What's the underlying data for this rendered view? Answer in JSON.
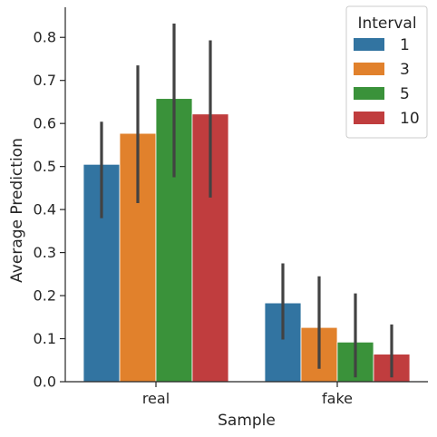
{
  "chart_data": {
    "type": "bar",
    "xlabel": "Sample",
    "ylabel": "Average Prediction",
    "ylim": [
      0,
      0.87
    ],
    "yticks": [
      "0.0",
      "0.1",
      "0.2",
      "0.3",
      "0.4",
      "0.5",
      "0.6",
      "0.7",
      "0.8"
    ],
    "categories": [
      "real",
      "fake"
    ],
    "series": [
      {
        "name": "1",
        "color": "#3274a1",
        "values": [
          0.505,
          0.183
        ],
        "ci": [
          [
            0.38,
            0.604
          ],
          [
            0.098,
            0.275
          ]
        ]
      },
      {
        "name": "3",
        "color": "#e1812c",
        "values": [
          0.577,
          0.126
        ],
        "ci": [
          [
            0.415,
            0.735
          ],
          [
            0.03,
            0.245
          ]
        ]
      },
      {
        "name": "5",
        "color": "#3a923a",
        "values": [
          0.658,
          0.092
        ],
        "ci": [
          [
            0.475,
            0.832
          ],
          [
            0.01,
            0.205
          ]
        ]
      },
      {
        "name": "10",
        "color": "#c03d3e",
        "values": [
          0.622,
          0.064
        ],
        "ci": [
          [
            0.428,
            0.793
          ],
          [
            0.01,
            0.133
          ]
        ]
      }
    ],
    "legend": {
      "title": "Interval",
      "position": "top-right"
    },
    "grid": false
  }
}
